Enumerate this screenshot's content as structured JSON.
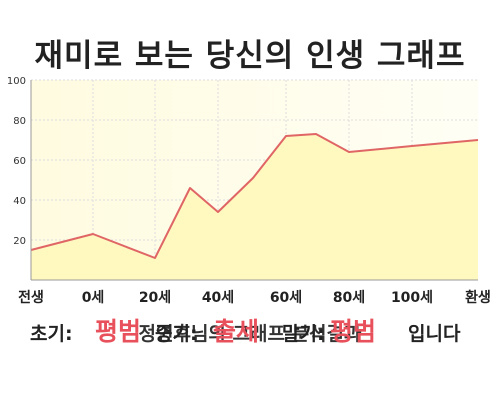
{
  "title": "재미로 보는 당신의 인생 그래프",
  "subtitle": "정연후님의 그래프 분석결과",
  "result": {
    "early_label": "초기:",
    "early_value": "평범",
    "mid_label": "중기:",
    "mid_value": "출세",
    "late_label": "말기:",
    "late_value": "평범",
    "suffix": "입니다"
  },
  "colors": {
    "plot_background": "#fffde8",
    "grid": "#dddddd",
    "line": "#e06666",
    "fill": "#fff9c0",
    "highlight": "#e8505b"
  },
  "chart_data": {
    "type": "area",
    "title": "재미로 보는 당신의 인생 그래프",
    "x_tick_labels": [
      "전생",
      "0세",
      "20세",
      "40세",
      "60세",
      "80세",
      "100세",
      "환생"
    ],
    "y_ticks": [
      20,
      40,
      60,
      80,
      100
    ],
    "ylim": [
      0,
      100
    ],
    "grid": true,
    "series": [
      {
        "points": [
          {
            "x": "전생",
            "y": 15
          },
          {
            "x": "0세",
            "y": 23
          },
          {
            "x": "20세",
            "y": 11
          },
          {
            "x": "30세",
            "y": 46
          },
          {
            "x": "40세",
            "y": 34
          },
          {
            "x": "50세",
            "y": 51
          },
          {
            "x": "60세",
            "y": 72
          },
          {
            "x": "70세",
            "y": 73
          },
          {
            "x": "80세",
            "y": 64
          },
          {
            "x": "100세",
            "y": 67
          },
          {
            "x": "환생",
            "y": 70
          }
        ]
      }
    ]
  }
}
